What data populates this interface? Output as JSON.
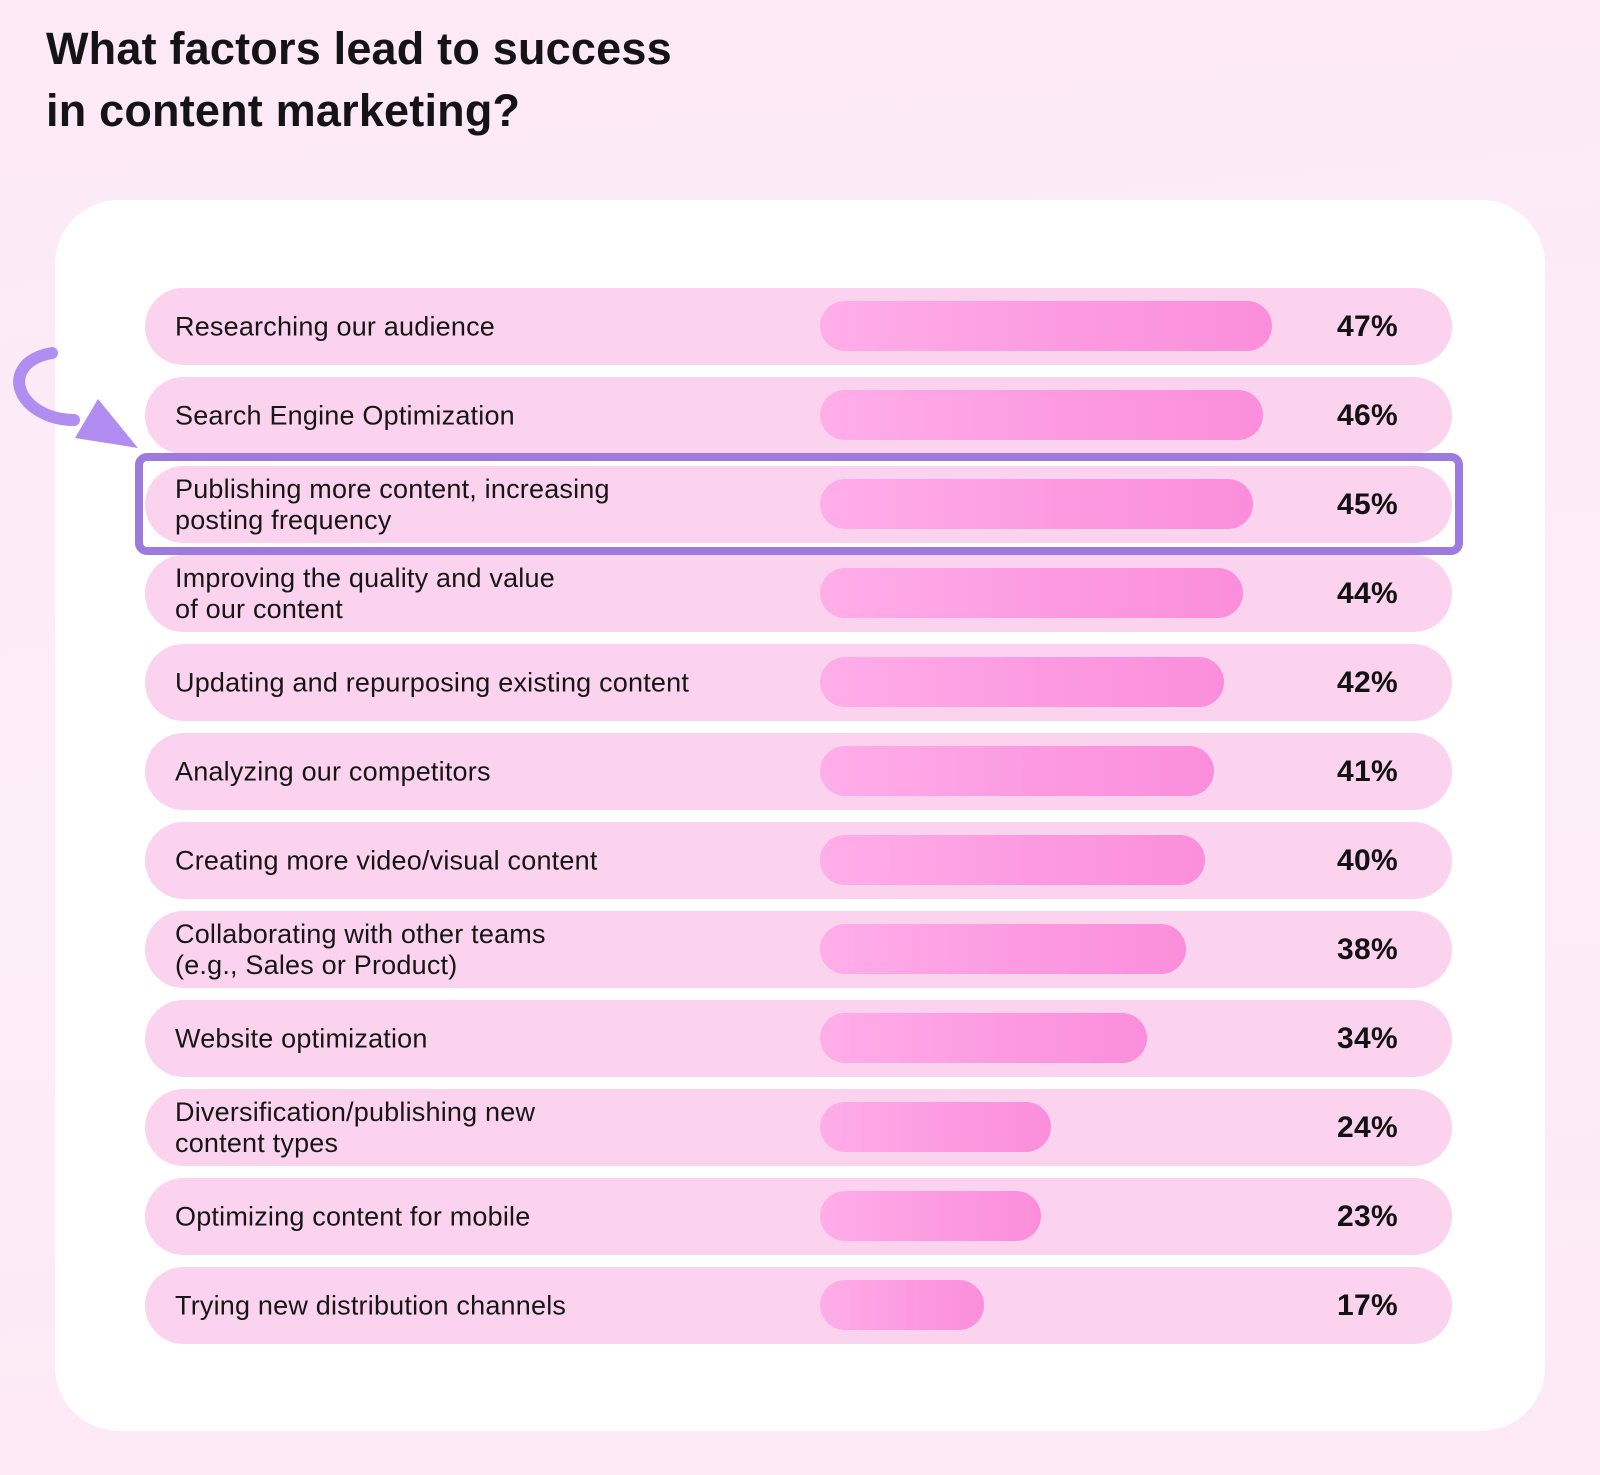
{
  "header": {
    "title": "What factors lead to success\nin content marketing?"
  },
  "chart_data": {
    "type": "bar",
    "orientation": "horizontal",
    "title": "What factors lead to success in content marketing?",
    "value_unit": "%",
    "value_range": [
      0,
      47
    ],
    "grid": false,
    "legend": false,
    "rows": [
      {
        "label": "Researching our audience",
        "value": 47,
        "highlighted": false
      },
      {
        "label": "Search Engine Optimization",
        "value": 46,
        "highlighted": false
      },
      {
        "label": "Publishing more content, increasing\nposting frequency",
        "value": 45,
        "highlighted": true
      },
      {
        "label": "Improving the quality and value\nof our content",
        "value": 44,
        "highlighted": false
      },
      {
        "label": "Updating and repurposing existing content",
        "value": 42,
        "highlighted": false
      },
      {
        "label": "Analyzing our competitors",
        "value": 41,
        "highlighted": false
      },
      {
        "label": "Creating more video/visual content",
        "value": 40,
        "highlighted": false
      },
      {
        "label": "Collaborating with other teams\n(e.g., Sales or Product)",
        "value": 38,
        "highlighted": false
      },
      {
        "label": "Website optimization",
        "value": 34,
        "highlighted": false
      },
      {
        "label": "Diversification/publishing new\ncontent types",
        "value": 24,
        "highlighted": false
      },
      {
        "label": "Optimizing content for mobile",
        "value": 23,
        "highlighted": false
      },
      {
        "label": "Trying new distribution channels",
        "value": 17,
        "highlighted": false
      }
    ],
    "annotations": {
      "highlighted_row": "Publishing more content, increasing posting frequency",
      "arrow_points_to": "Publishing more content, increasing posting frequency"
    }
  },
  "colors": {
    "page_background": "#fcebf6",
    "card_background": "#ffffff",
    "row_background": "#fbd3ee",
    "bar_gradient_start": "#ffaee9",
    "bar_gradient_end": "#fb8edc",
    "highlight_border": "#9c7ade",
    "arrow": "#b18df1",
    "text": "#141416"
  }
}
